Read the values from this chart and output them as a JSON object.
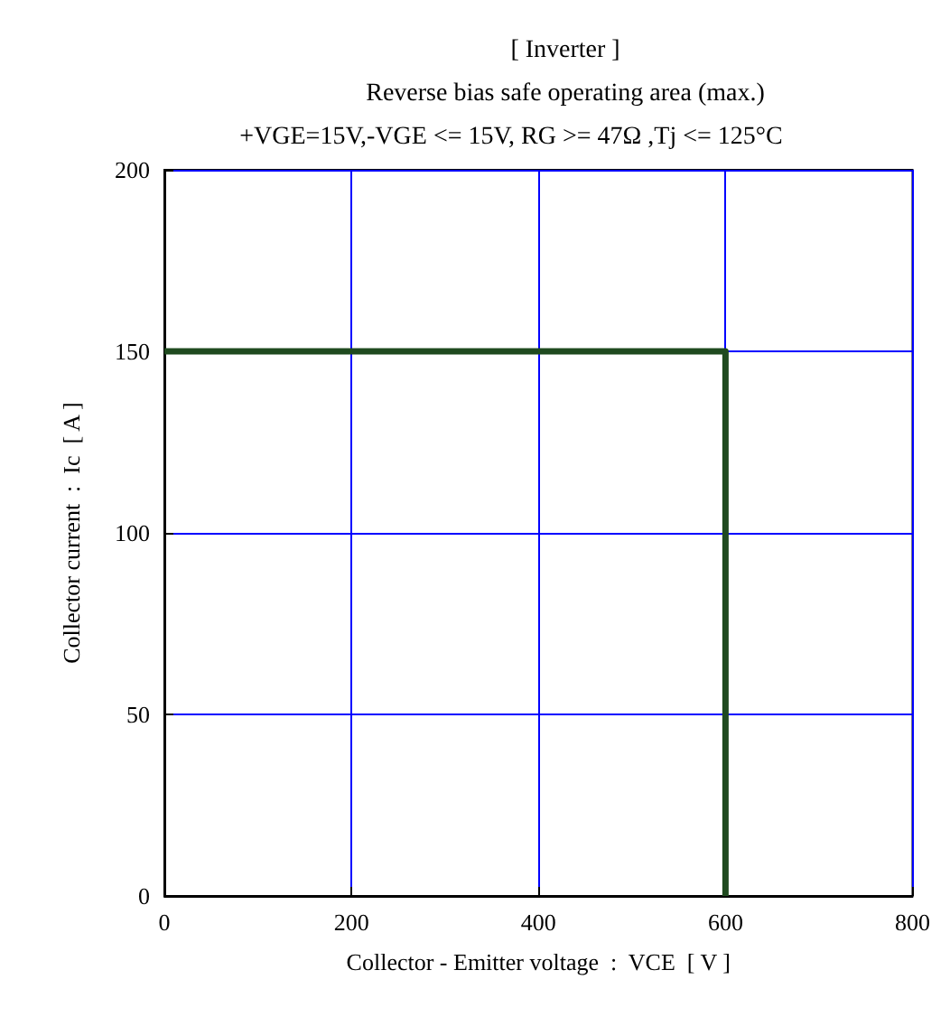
{
  "chart_data": {
    "type": "step",
    "title": "[ Inverter ]",
    "subtitle": "Reverse bias safe operating area (max.)",
    "annotations": [
      "+VGE=15V,-VGE <= 15V, RG >= 47Ω ,Tj <= 125°C"
    ],
    "xlabel": "Collector - Emitter voltage  :  VCE  [ V ]",
    "ylabel": "Collector current  :  Ic  [ A ]",
    "x": [
      0,
      600
    ],
    "series": [
      {
        "color": "#1f4a1f",
        "values": [
          150,
          0
        ]
      }
    ],
    "xlim": [
      0,
      800
    ],
    "xticks": [
      0,
      200,
      400,
      600,
      800
    ],
    "ylim": [
      0,
      200
    ],
    "yticks": [
      0,
      50,
      100,
      150,
      200
    ],
    "grid": true,
    "marker": "none",
    "line_style": "solid"
  }
}
